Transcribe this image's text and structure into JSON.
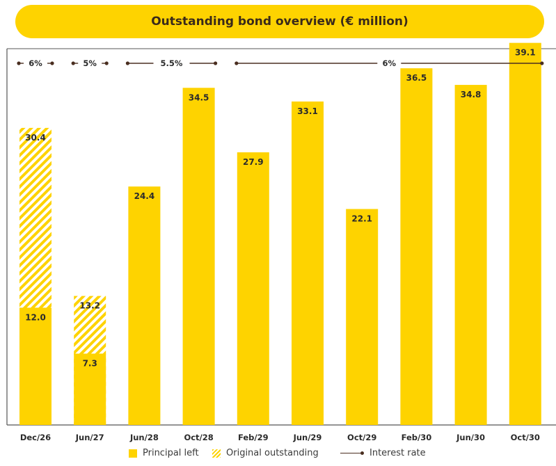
{
  "header": {
    "title": "Outstanding bond overview (€ million)"
  },
  "legend": {
    "principal": "Principal left",
    "original": "Original outstanding",
    "rate": "Interest rate"
  },
  "colors": {
    "bar": "#fed300",
    "line": "#4a2e20",
    "axis": "#555555"
  },
  "chart_data": {
    "type": "bar",
    "title": "Outstanding bond overview (€ million)",
    "xlabel": "",
    "ylabel": "",
    "ylim": [
      0,
      45
    ],
    "grid": false,
    "legend_position": "bottom",
    "categories": [
      "Dec/26",
      "Jun/27",
      "Jun/28",
      "Oct/28",
      "Feb/29",
      "Jun/29",
      "Oct/29",
      "Feb/30",
      "Jun/30",
      "Oct/30"
    ],
    "series": [
      {
        "name": "Principal left",
        "values": [
          12.0,
          7.3,
          24.4,
          34.5,
          27.9,
          33.1,
          22.1,
          36.5,
          34.8,
          39.1
        ]
      },
      {
        "name": "Original outstanding",
        "values": [
          30.4,
          13.2,
          null,
          null,
          null,
          null,
          null,
          null,
          null,
          null
        ]
      }
    ],
    "value_labels": [
      "12.0",
      "7.3",
      "24.4",
      "34.5",
      "27.9",
      "33.1",
      "22.1",
      "36.5",
      "34.8",
      "39.1"
    ],
    "original_labels": [
      "30.4",
      "13.2"
    ],
    "interest_rates": [
      {
        "label": "6%",
        "from": 0,
        "to": 0
      },
      {
        "label": "5%",
        "from": 1,
        "to": 1
      },
      {
        "label": "5.5%",
        "from": 2,
        "to": 3
      },
      {
        "label": "6%",
        "from": 4,
        "to": 9
      }
    ]
  }
}
